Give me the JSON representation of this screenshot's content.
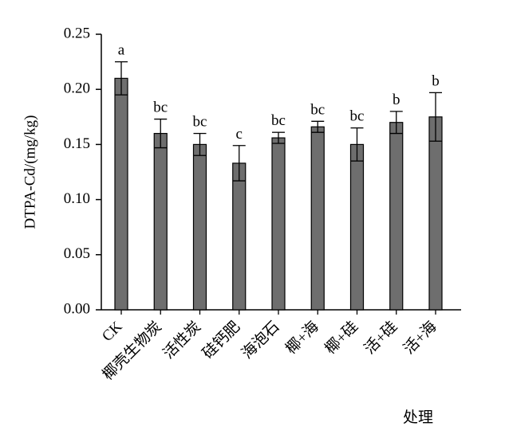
{
  "chart_data": {
    "type": "bar",
    "title": "",
    "xlabel": "处理",
    "ylabel": "DTPA-Cd/(mg/kg)",
    "ylim": [
      0,
      0.25
    ],
    "yticks": [
      "0.00",
      "0.05",
      "0.10",
      "0.15",
      "0.20",
      "0.25"
    ],
    "ytick_values": [
      0,
      0.05,
      0.1,
      0.15,
      0.2,
      0.25
    ],
    "categories": [
      "CK",
      "椰壳生物炭",
      "活性炭",
      "硅钙肥",
      "海泡石",
      "椰+海",
      "椰+硅",
      "活+硅",
      "活+海"
    ],
    "values": [
      0.21,
      0.16,
      0.15,
      0.133,
      0.156,
      0.166,
      0.15,
      0.17,
      0.175
    ],
    "errors": [
      0.015,
      0.013,
      0.01,
      0.016,
      0.005,
      0.005,
      0.015,
      0.01,
      0.022
    ],
    "significance_labels": [
      "a",
      "bc",
      "bc",
      "c",
      "bc",
      "bc",
      "bc",
      "b",
      "b"
    ],
    "bar_color": "#6e6e6e",
    "bar_edge_color": "#000000",
    "grid": false,
    "legend": "none"
  }
}
